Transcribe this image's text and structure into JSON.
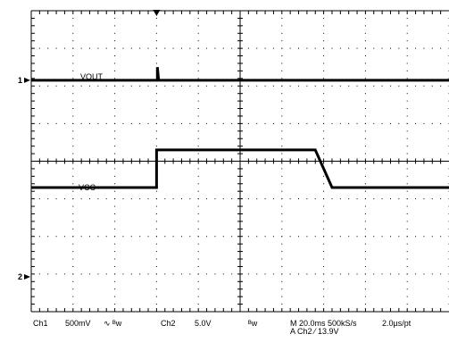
{
  "chart_data": {
    "type": "line",
    "grid": true,
    "x_divisions": 10,
    "y_divisions": 8,
    "trigger_time_div": 3,
    "series": [
      {
        "name": "VOUT",
        "marker": "1",
        "points": [
          [
            0,
            6.15
          ],
          [
            3.02,
            6.15
          ],
          [
            3.02,
            6.5
          ],
          [
            3.05,
            6.15
          ],
          [
            10,
            6.15
          ]
        ]
      },
      {
        "name": "VCC",
        "marker": "2",
        "points": [
          [
            0,
            3.3
          ],
          [
            3.0,
            3.3
          ],
          [
            3.0,
            4.3
          ],
          [
            6.8,
            4.3
          ],
          [
            7.2,
            3.3
          ],
          [
            10,
            3.3
          ]
        ]
      }
    ],
    "readout": {
      "ch1": "Ch1",
      "ch1_scale": "500mV",
      "ch1_coupling": "∿ ᴮw",
      "ch2": "Ch2",
      "ch2_scale": "5.0V",
      "bw": "ᴮw",
      "timebase": "M 20.0ms 500kS/s",
      "trigger": "A  Ch2  ⁄  13.9V",
      "sample": "2.0µs/pt"
    }
  },
  "colors": {
    "trace": "#000000",
    "grid": "#000000",
    "background": "#ffffff"
  }
}
